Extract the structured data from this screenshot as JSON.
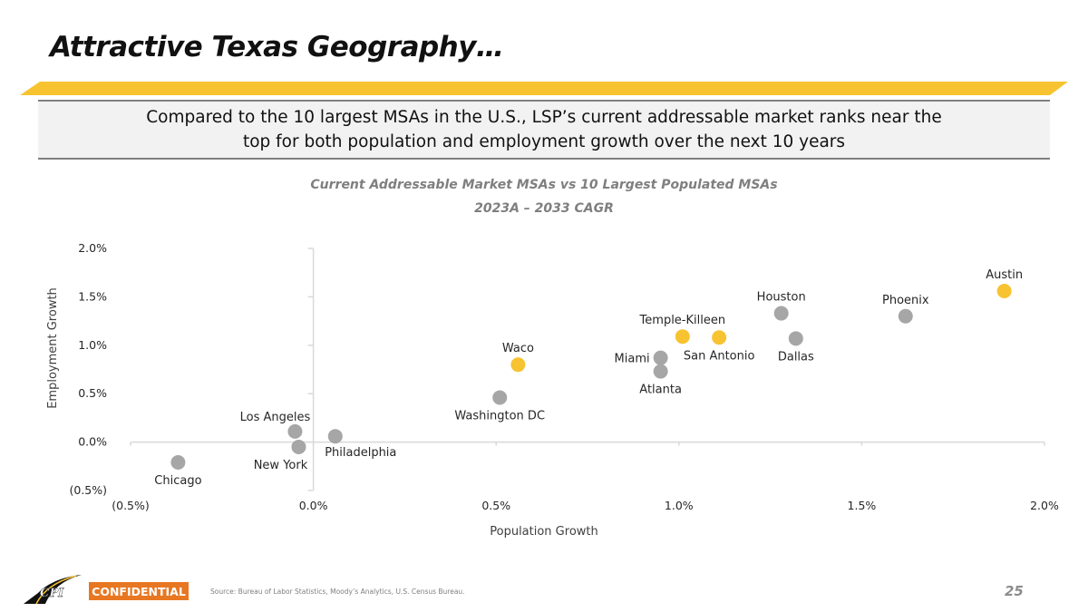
{
  "header": {
    "title": "Attractive Texas Geography…",
    "callout_line1": "Compared to the 10 largest MSAs in the U.S., LSP’s current addressable market ranks near the",
    "callout_line2": "top for both population and employment growth over the next 10 years"
  },
  "colors": {
    "accent_yellow": "#f8c331",
    "point_gray": "#a6a6a6",
    "confidential_orange": "#e87722",
    "axis_gray": "#d9d9d9"
  },
  "chart_data": {
    "type": "scatter",
    "title": "Current Addressable Market MSAs vs 10 Largest Populated MSAs",
    "subtitle": "2023A – 2033 CAGR",
    "xlabel": "Population Growth",
    "ylabel": "Employment Growth",
    "xlim": [
      -0.5,
      2.0
    ],
    "ylim": [
      -0.5,
      2.0
    ],
    "x_ticks": [
      -0.5,
      0.0,
      0.5,
      1.0,
      1.5,
      2.0
    ],
    "y_ticks": [
      -0.5,
      0.0,
      0.5,
      1.0,
      1.5,
      2.0
    ],
    "x_tick_labels": [
      "(0.5%)",
      "0.0%",
      "0.5%",
      "1.0%",
      "1.5%",
      "2.0%"
    ],
    "y_tick_labels": [
      "(0.5%)",
      "0.0%",
      "0.5%",
      "1.0%",
      "1.5%",
      "2.0%"
    ],
    "grid": false,
    "units": "percent CAGR",
    "series": [
      {
        "name": "Current Addressable Market MSAs",
        "color": "#f8c331",
        "points": [
          {
            "label": "Austin",
            "x": 1.89,
            "y": 1.56,
            "label_pos": "above"
          },
          {
            "label": "Temple-Killeen",
            "x": 1.01,
            "y": 1.09,
            "label_pos": "above"
          },
          {
            "label": "San Antonio",
            "x": 1.11,
            "y": 1.08,
            "label_pos": "below"
          },
          {
            "label": "Waco",
            "x": 0.56,
            "y": 0.8,
            "label_pos": "above"
          }
        ]
      },
      {
        "name": "10 Largest Populated MSAs",
        "color": "#a6a6a6",
        "points": [
          {
            "label": "Houston",
            "x": 1.28,
            "y": 1.33,
            "label_pos": "above"
          },
          {
            "label": "Dallas",
            "x": 1.32,
            "y": 1.07,
            "label_pos": "below"
          },
          {
            "label": "Phoenix",
            "x": 1.62,
            "y": 1.3,
            "label_pos": "above"
          },
          {
            "label": "Miami",
            "x": 0.95,
            "y": 0.87,
            "label_pos": "left"
          },
          {
            "label": "Atlanta",
            "x": 0.95,
            "y": 0.73,
            "label_pos": "below"
          },
          {
            "label": "Washington DC",
            "x": 0.51,
            "y": 0.46,
            "label_pos": "below"
          },
          {
            "label": "Los Angeles",
            "x": -0.05,
            "y": 0.11,
            "label_pos": "above-left"
          },
          {
            "label": "New York",
            "x": -0.04,
            "y": -0.05,
            "label_pos": "below-left"
          },
          {
            "label": "Philadelphia",
            "x": 0.06,
            "y": 0.06,
            "label_pos": "below-right"
          },
          {
            "label": "Chicago",
            "x": -0.37,
            "y": -0.21,
            "label_pos": "below"
          }
        ]
      }
    ]
  },
  "footer": {
    "logo_text": "CPI",
    "confidential": "CONFIDENTIAL",
    "source": "Source: Bureau of Labor Statistics, Moody’s Analytics, U.S. Census Bureau.",
    "page_number": "25"
  }
}
